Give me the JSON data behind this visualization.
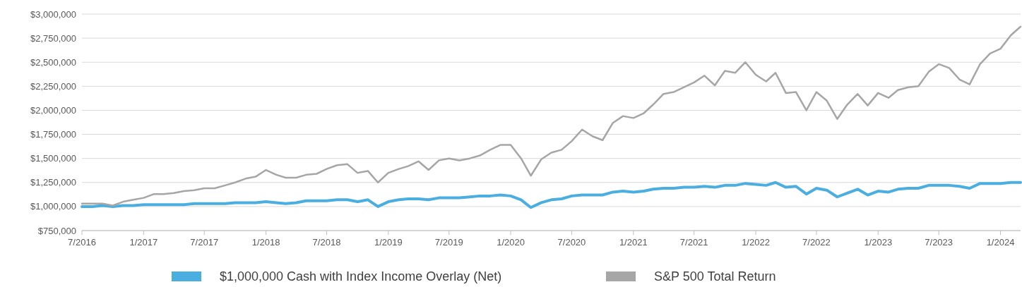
{
  "chart_data": {
    "type": "line",
    "xlim": [
      "2016-07",
      "2024-03"
    ],
    "ylim": [
      750000,
      3000000
    ],
    "yticks": [
      {
        "value": 750000,
        "label": "$750,000"
      },
      {
        "value": 1000000,
        "label": "$1,000,000"
      },
      {
        "value": 1250000,
        "label": "$1,250,000"
      },
      {
        "value": 1500000,
        "label": "$1,500,000"
      },
      {
        "value": 1750000,
        "label": "$1,750,000"
      },
      {
        "value": 2000000,
        "label": "$2,000,000"
      },
      {
        "value": 2250000,
        "label": "$2,250,000"
      },
      {
        "value": 2500000,
        "label": "$2,500,000"
      },
      {
        "value": 2750000,
        "label": "$2,750,000"
      },
      {
        "value": 3000000,
        "label": "$3,000,000"
      }
    ],
    "xticks": [
      {
        "value": "2016-07",
        "label": "7/2016"
      },
      {
        "value": "2017-01",
        "label": "1/2017"
      },
      {
        "value": "2017-07",
        "label": "7/2017"
      },
      {
        "value": "2018-01",
        "label": "1/2018"
      },
      {
        "value": "2018-07",
        "label": "7/2018"
      },
      {
        "value": "2019-01",
        "label": "1/2019"
      },
      {
        "value": "2019-07",
        "label": "7/2019"
      },
      {
        "value": "2020-01",
        "label": "1/2020"
      },
      {
        "value": "2020-07",
        "label": "7/2020"
      },
      {
        "value": "2021-01",
        "label": "1/2021"
      },
      {
        "value": "2021-07",
        "label": "7/2021"
      },
      {
        "value": "2022-01",
        "label": "1/2022"
      },
      {
        "value": "2022-07",
        "label": "7/2022"
      },
      {
        "value": "2023-01",
        "label": "1/2023"
      },
      {
        "value": "2023-07",
        "label": "7/2023"
      },
      {
        "value": "2024-01",
        "label": "1/2024"
      }
    ],
    "grid": "y",
    "legend": "bottom",
    "marker": "none",
    "line_style": "solid",
    "x": [
      "2016-07",
      "2016-08",
      "2016-09",
      "2016-10",
      "2016-11",
      "2016-12",
      "2017-01",
      "2017-02",
      "2017-03",
      "2017-04",
      "2017-05",
      "2017-06",
      "2017-07",
      "2017-08",
      "2017-09",
      "2017-10",
      "2017-11",
      "2017-12",
      "2018-01",
      "2018-02",
      "2018-03",
      "2018-04",
      "2018-05",
      "2018-06",
      "2018-07",
      "2018-08",
      "2018-09",
      "2018-10",
      "2018-11",
      "2018-12",
      "2019-01",
      "2019-02",
      "2019-03",
      "2019-04",
      "2019-05",
      "2019-06",
      "2019-07",
      "2019-08",
      "2019-09",
      "2019-10",
      "2019-11",
      "2019-12",
      "2020-01",
      "2020-02",
      "2020-03",
      "2020-04",
      "2020-05",
      "2020-06",
      "2020-07",
      "2020-08",
      "2020-09",
      "2020-10",
      "2020-11",
      "2020-12",
      "2021-01",
      "2021-02",
      "2021-03",
      "2021-04",
      "2021-05",
      "2021-06",
      "2021-07",
      "2021-08",
      "2021-09",
      "2021-10",
      "2021-11",
      "2021-12",
      "2022-01",
      "2022-02",
      "2022-03",
      "2022-04",
      "2022-05",
      "2022-06",
      "2022-07",
      "2022-08",
      "2022-09",
      "2022-10",
      "2022-11",
      "2022-12",
      "2023-01",
      "2023-02",
      "2023-03",
      "2023-04",
      "2023-05",
      "2023-06",
      "2023-07",
      "2023-08",
      "2023-09",
      "2023-10",
      "2023-11",
      "2023-12",
      "2024-01",
      "2024-02",
      "2024-03"
    ],
    "series": [
      {
        "name": "$1,000,000 Cash with Index Income Overlay (Net)",
        "color": "#4baee0",
        "values": [
          1000000,
          1000000,
          1010000,
          1000000,
          1010000,
          1010000,
          1020000,
          1020000,
          1020000,
          1020000,
          1020000,
          1030000,
          1030000,
          1030000,
          1030000,
          1040000,
          1040000,
          1040000,
          1050000,
          1040000,
          1030000,
          1040000,
          1060000,
          1060000,
          1060000,
          1070000,
          1070000,
          1050000,
          1070000,
          1000000,
          1050000,
          1070000,
          1080000,
          1080000,
          1070000,
          1090000,
          1090000,
          1090000,
          1100000,
          1110000,
          1110000,
          1120000,
          1110000,
          1070000,
          990000,
          1040000,
          1070000,
          1080000,
          1110000,
          1120000,
          1120000,
          1120000,
          1150000,
          1160000,
          1150000,
          1160000,
          1180000,
          1190000,
          1190000,
          1200000,
          1200000,
          1210000,
          1200000,
          1220000,
          1220000,
          1240000,
          1230000,
          1220000,
          1250000,
          1200000,
          1210000,
          1130000,
          1190000,
          1170000,
          1100000,
          1140000,
          1180000,
          1120000,
          1160000,
          1150000,
          1180000,
          1190000,
          1190000,
          1220000,
          1220000,
          1220000,
          1210000,
          1190000,
          1240000,
          1240000,
          1240000,
          1250000,
          1250000
        ]
      },
      {
        "name": "S&P 500 Total Return",
        "color": "#a6a6a6",
        "values": [
          1030000,
          1030000,
          1030000,
          1010000,
          1050000,
          1070000,
          1090000,
          1130000,
          1130000,
          1140000,
          1160000,
          1170000,
          1190000,
          1190000,
          1220000,
          1250000,
          1290000,
          1310000,
          1380000,
          1330000,
          1300000,
          1300000,
          1330000,
          1340000,
          1390000,
          1430000,
          1440000,
          1350000,
          1370000,
          1250000,
          1350000,
          1390000,
          1420000,
          1470000,
          1380000,
          1480000,
          1500000,
          1480000,
          1500000,
          1530000,
          1590000,
          1640000,
          1640000,
          1500000,
          1320000,
          1490000,
          1560000,
          1590000,
          1680000,
          1800000,
          1730000,
          1690000,
          1870000,
          1940000,
          1920000,
          1970000,
          2060000,
          2170000,
          2190000,
          2240000,
          2290000,
          2360000,
          2260000,
          2410000,
          2390000,
          2500000,
          2370000,
          2300000,
          2390000,
          2180000,
          2190000,
          2000000,
          2190000,
          2100000,
          1910000,
          2060000,
          2170000,
          2050000,
          2180000,
          2130000,
          2210000,
          2240000,
          2250000,
          2400000,
          2480000,
          2440000,
          2320000,
          2270000,
          2480000,
          2590000,
          2640000,
          2780000,
          2870000
        ]
      }
    ]
  }
}
